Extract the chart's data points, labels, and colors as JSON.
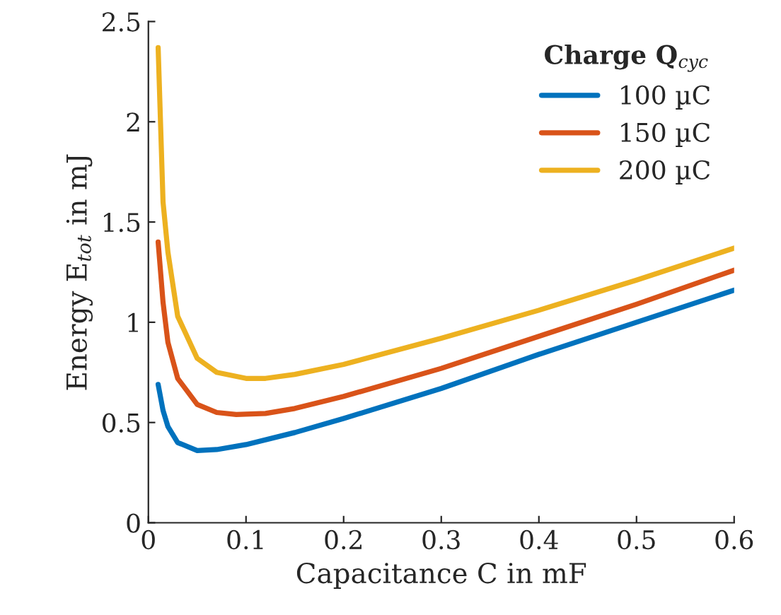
{
  "chart_data": {
    "type": "line",
    "xlabel": "Capacitance C in mF",
    "ylabel": "Energy E$_{tot}$ in mJ",
    "legend_title": "Charge Q$_{cyc}$",
    "legend": "top right",
    "grid": false,
    "xlim": [
      0,
      0.6
    ],
    "ylim": [
      0,
      2.5
    ],
    "xticks": [
      0,
      0.1,
      0.2,
      0.3,
      0.4,
      0.5,
      0.6
    ],
    "yticks": [
      0,
      0.5,
      1,
      1.5,
      2,
      2.5
    ],
    "series": [
      {
        "name": "100 µC",
        "color": "#0072bd",
        "x": [
          0.01,
          0.015,
          0.02,
          0.03,
          0.05,
          0.07,
          0.1,
          0.15,
          0.2,
          0.3,
          0.4,
          0.5,
          0.6
        ],
        "values": [
          0.69,
          0.56,
          0.48,
          0.4,
          0.36,
          0.365,
          0.39,
          0.45,
          0.52,
          0.67,
          0.84,
          1.0,
          1.16
        ]
      },
      {
        "name": "150 µC",
        "color": "#d95319",
        "x": [
          0.01,
          0.015,
          0.02,
          0.03,
          0.05,
          0.07,
          0.09,
          0.12,
          0.15,
          0.2,
          0.3,
          0.4,
          0.5,
          0.6
        ],
        "values": [
          1.4,
          1.1,
          0.9,
          0.72,
          0.59,
          0.55,
          0.54,
          0.545,
          0.57,
          0.63,
          0.77,
          0.93,
          1.09,
          1.26
        ]
      },
      {
        "name": "200 µC",
        "color": "#edb120",
        "x": [
          0.01,
          0.015,
          0.02,
          0.03,
          0.05,
          0.07,
          0.1,
          0.12,
          0.15,
          0.2,
          0.3,
          0.4,
          0.5,
          0.6
        ],
        "values": [
          2.37,
          1.6,
          1.35,
          1.03,
          0.82,
          0.75,
          0.72,
          0.72,
          0.74,
          0.79,
          0.92,
          1.06,
          1.21,
          1.37
        ]
      }
    ]
  }
}
